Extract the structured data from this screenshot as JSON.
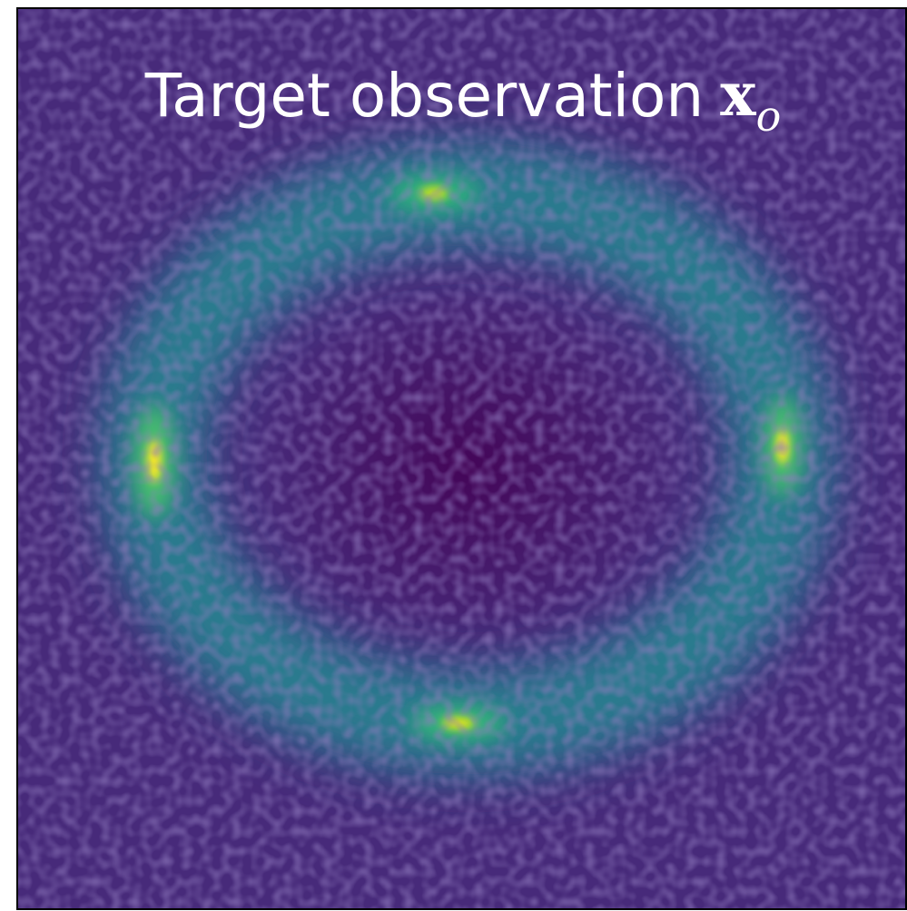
{
  "title": {
    "text": "Target observation",
    "symbol": "x",
    "subscript": "o"
  }
}
